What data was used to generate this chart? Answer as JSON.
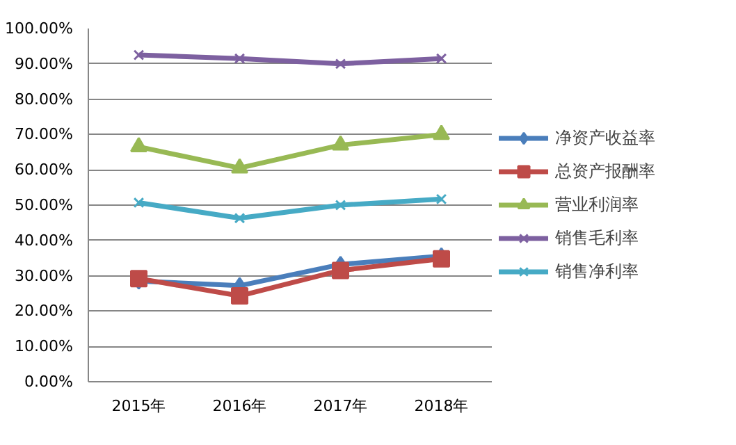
{
  "chart_data": {
    "type": "line",
    "categories": [
      "2015年",
      "2016年",
      "2017年",
      "2018年"
    ],
    "series": [
      {
        "name": "净资产收益率",
        "color": "#4a7ebb",
        "marker": "diamond",
        "values": [
          28.5,
          27.2,
          33.2,
          35.6
        ]
      },
      {
        "name": "总资产报酬率",
        "color": "#be4b48",
        "marker": "square",
        "values": [
          29.2,
          24.3,
          31.5,
          34.8
        ]
      },
      {
        "name": "营业利润率",
        "color": "#98b954",
        "marker": "triangle",
        "values": [
          66.5,
          60.5,
          67.0,
          70.0
        ]
      },
      {
        "name": "销售毛利率",
        "color": "#7d60a0",
        "marker": "cross",
        "values": [
          92.5,
          91.5,
          90.0,
          91.5
        ]
      },
      {
        "name": "销售净利率",
        "color": "#46aac5",
        "marker": "cross",
        "values": [
          50.7,
          46.3,
          50.0,
          51.7
        ]
      }
    ],
    "ylim": [
      0,
      100
    ],
    "yticks": [
      {
        "value": 0,
        "label": "0.00%"
      },
      {
        "value": 10,
        "label": "10.00%"
      },
      {
        "value": 20,
        "label": "20.00%"
      },
      {
        "value": 30,
        "label": "30.00%"
      },
      {
        "value": 40,
        "label": "40.00%"
      },
      {
        "value": 50,
        "label": "50.00%"
      },
      {
        "value": 60,
        "label": "60.00%"
      },
      {
        "value": 70,
        "label": "70.00%"
      },
      {
        "value": 80,
        "label": "80.00%"
      },
      {
        "value": 90,
        "label": "90.00%"
      },
      {
        "value": 100,
        "label": "100.00%"
      }
    ],
    "grid": "y",
    "legend": "right",
    "line_style": "solid"
  }
}
